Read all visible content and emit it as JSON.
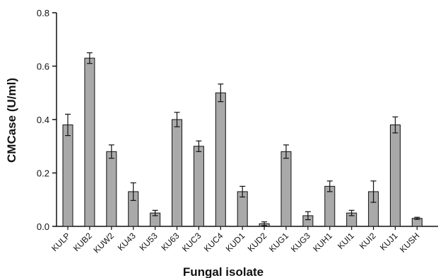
{
  "chart_data": {
    "type": "bar",
    "title": "",
    "xlabel": "Fungal isolate",
    "ylabel": "CMCase (U/ml)",
    "ylim": [
      0,
      0.8
    ],
    "yticks": [
      "0.0",
      "0.2",
      "0.4",
      "0.6",
      "0.8"
    ],
    "categories": [
      "KULP",
      "KUB2",
      "KUW2",
      "KU43",
      "KU53",
      "KU63",
      "KUC3",
      "KUC4",
      "KUD1",
      "KUD2",
      "KUG1",
      "KUG3",
      "KUH1",
      "KUI1",
      "KUI2",
      "KUJ1",
      "KUSH"
    ],
    "values": [
      0.38,
      0.63,
      0.28,
      0.13,
      0.05,
      0.4,
      0.3,
      0.5,
      0.13,
      0.01,
      0.28,
      0.04,
      0.15,
      0.05,
      0.13,
      0.38,
      0.03
    ],
    "errors": [
      0.04,
      0.02,
      0.025,
      0.033,
      0.01,
      0.027,
      0.02,
      0.033,
      0.02,
      0.007,
      0.025,
      0.015,
      0.02,
      0.01,
      0.04,
      0.03,
      0.004
    ],
    "bar_color": "#a9a9a9",
    "bar_edge_color": "#111111",
    "grid": false,
    "legend": "none"
  }
}
